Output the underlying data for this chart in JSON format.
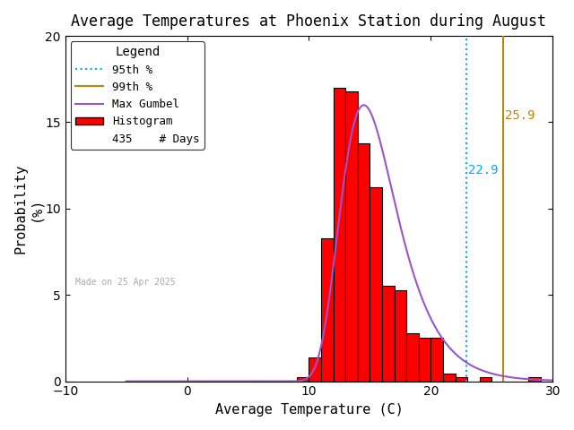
{
  "title": "Average Temperatures at Phoenix Station during August",
  "xlabel": "Average Temperature (C)",
  "ylabel": "Probability\n(%)",
  "xlim": [
    -10,
    30
  ],
  "ylim": [
    0,
    20
  ],
  "xticks": [
    -10,
    0,
    10,
    20,
    30
  ],
  "yticks": [
    0,
    5,
    10,
    15,
    20
  ],
  "bin_left_edges": [
    8,
    9,
    10,
    11,
    12,
    13,
    14,
    15,
    16,
    17,
    18,
    19,
    20,
    21,
    22,
    23,
    24,
    25,
    26,
    27,
    28
  ],
  "bar_heights": [
    0.0,
    0.23,
    1.38,
    8.28,
    17.01,
    16.78,
    13.79,
    11.26,
    5.52,
    5.29,
    2.76,
    2.53,
    2.53,
    0.46,
    0.23,
    0.0,
    0.23,
    0.0,
    0.0,
    0.0,
    0.23
  ],
  "bar_color": "#ff0000",
  "bar_edgecolor": "#000000",
  "percentile_95": 22.9,
  "percentile_99": 25.9,
  "percentile_95_color": "#00aaff",
  "percentile_99_color": "#b8860b",
  "gumbel_mu": 14.5,
  "gumbel_beta": 2.3,
  "gumbel_color": "#9955cc",
  "n_days": 435,
  "made_on": "Made on 25 Apr 2025",
  "legend_title": "Legend",
  "title_fontsize": 12,
  "axis_fontsize": 11,
  "tick_fontsize": 10,
  "background_color": "#ffffff"
}
